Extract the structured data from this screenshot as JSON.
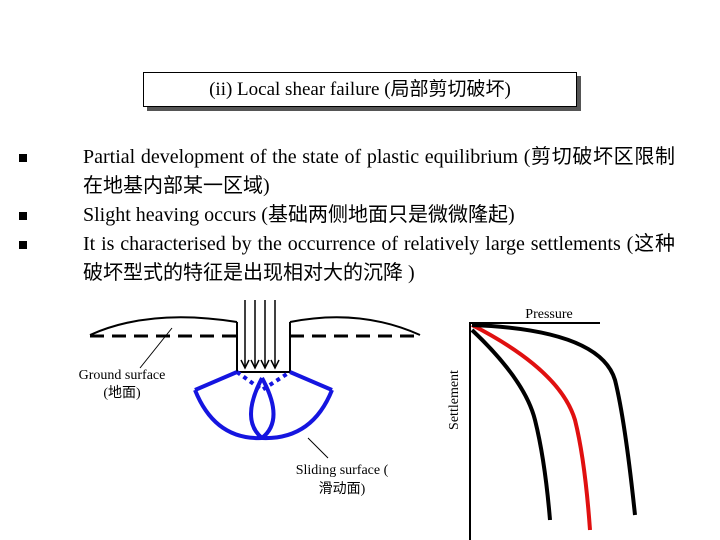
{
  "title": "(ii) Local shear failure (局部剪切破坏)",
  "bullets": [
    "Partial development of the state of plastic equilibrium (剪切破坏区限制在地基内部某一区域)",
    "Slight heaving occurs (基础两侧地面只是微微隆起)",
    "It is characterised by the occurrence of relatively large settlements (这种破坏型式的特征是出现相对大的沉降 )"
  ],
  "diagram": {
    "ground_label": [
      "Ground surface",
      "(地面)"
    ],
    "sliding_label": [
      "Sliding surface (",
      "滑动面)"
    ],
    "pressure_label": "Pressure",
    "settlement_label": "Settlement"
  }
}
